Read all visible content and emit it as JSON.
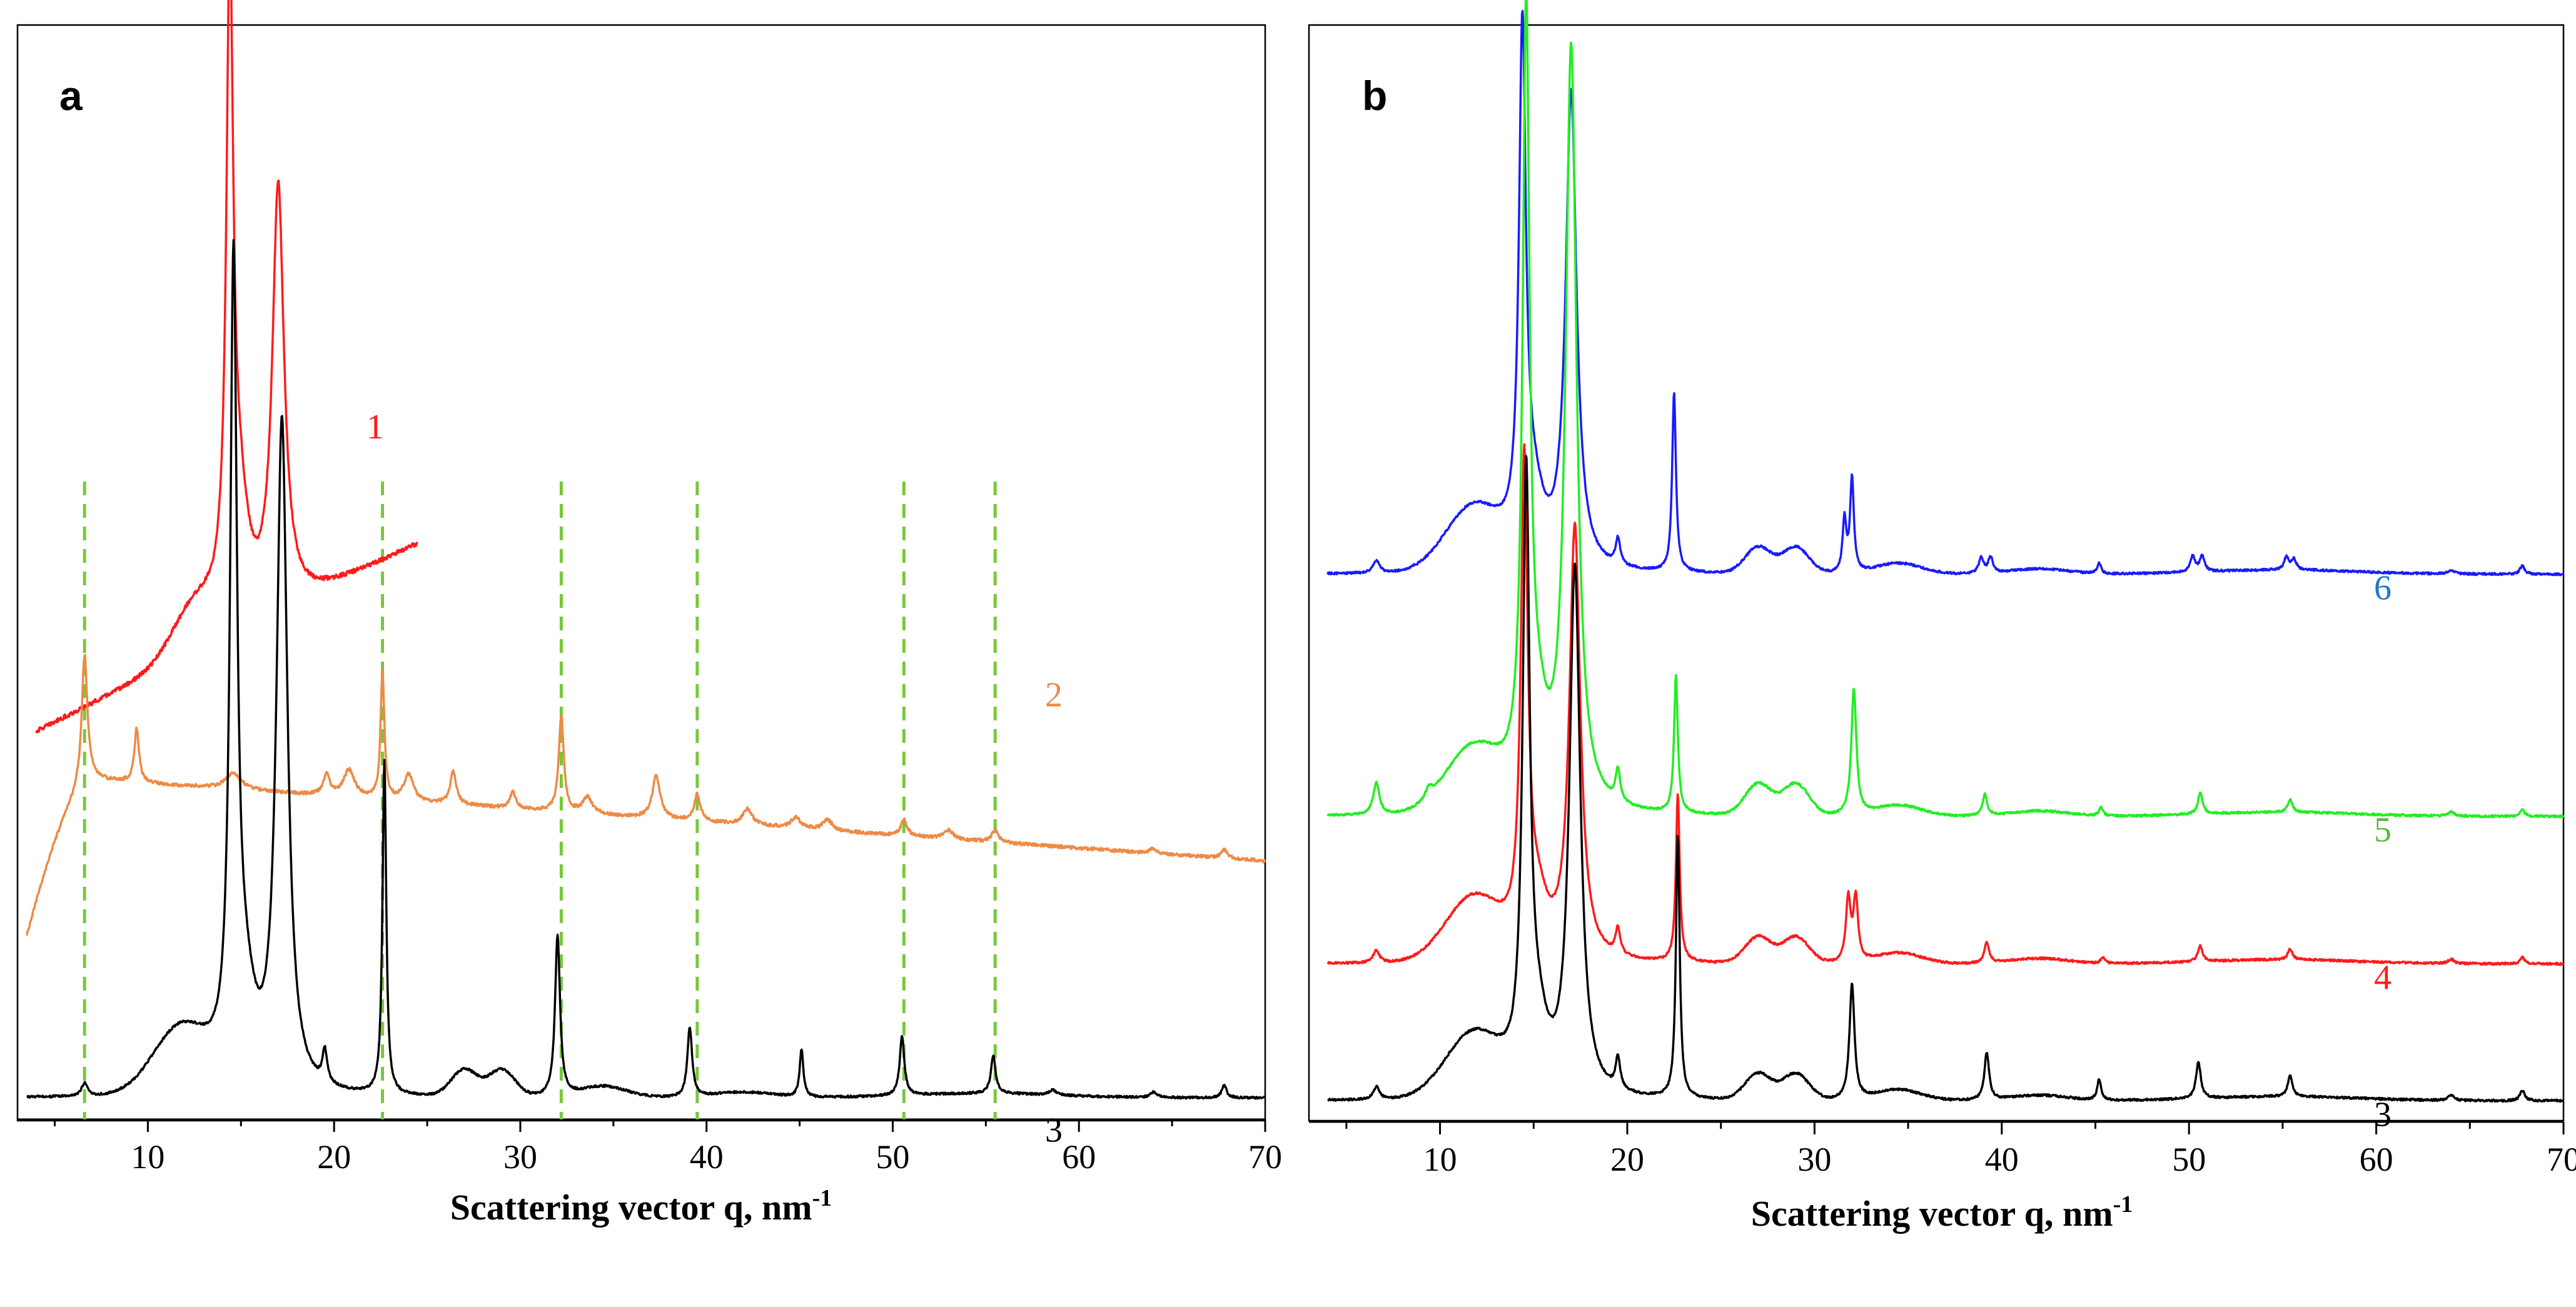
{
  "chart_data": [
    {
      "type": "line",
      "panel": "a",
      "xlabel": "Scattering vector q, nm",
      "xlabel_sup": "-1",
      "xlim": [
        3,
        70
      ],
      "xticks": [
        10,
        20,
        30,
        40,
        50,
        60,
        70
      ],
      "ylabel": "",
      "y_axis_shown": false,
      "grid": false,
      "reference_lines": {
        "style": "dashed",
        "color": "#77c83a",
        "q": [
          6.6,
          22.6,
          32.2,
          39.5,
          50.6,
          55.5
        ]
      },
      "series": [
        {
          "name": "1",
          "label": "1",
          "color": "#ff1a1a",
          "q_range": [
            4.0,
            24.5
          ],
          "baseline": 0.36,
          "slope": 0.0085,
          "broad_peaks": [
            [
              12.5,
              0.04,
              1.2
            ]
          ],
          "peaks": [
            [
              14.4,
              0.58,
              0.22
            ],
            [
              17.0,
              0.39,
              0.38
            ],
            [
              14.9,
              0.1,
              0.6
            ]
          ],
          "noise": 0.004
        },
        {
          "name": "2",
          "label": "2",
          "color": "#ee8a45",
          "q_range": [
            3.5,
            70.0
          ],
          "baseline": 0.32,
          "slope": -0.0012,
          "onset": [
            3.5,
            7.0,
            0.15
          ],
          "peaks": [
            [
              6.6,
              0.12,
              0.18
            ],
            [
              9.4,
              0.05,
              0.15
            ],
            [
              14.6,
              0.015,
              0.5
            ],
            [
              19.6,
              0.02,
              0.2
            ],
            [
              20.8,
              0.025,
              0.35
            ],
            [
              22.6,
              0.12,
              0.12
            ],
            [
              24.0,
              0.025,
              0.3
            ],
            [
              26.4,
              0.03,
              0.2
            ],
            [
              29.6,
              0.015,
              0.2
            ],
            [
              32.2,
              0.09,
              0.16
            ],
            [
              33.6,
              0.015,
              0.3
            ],
            [
              37.3,
              0.04,
              0.25
            ],
            [
              39.5,
              0.025,
              0.2
            ],
            [
              42.2,
              0.015,
              0.3
            ],
            [
              44.8,
              0.01,
              0.3
            ],
            [
              46.5,
              0.01,
              0.3
            ],
            [
              50.6,
              0.015,
              0.2
            ],
            [
              53.0,
              0.008,
              0.3
            ],
            [
              55.5,
              0.012,
              0.2
            ],
            [
              64.0,
              0.005,
              0.2
            ],
            [
              67.8,
              0.008,
              0.2
            ]
          ],
          "noise": 0.003
        },
        {
          "name": "3",
          "label": "3",
          "color": "#000000",
          "q_range": [
            3.5,
            70.0
          ],
          "baseline": 0.02,
          "slope": 0.0,
          "broad_peaks": [
            [
              11.8,
              0.06,
              1.5
            ],
            [
              27.0,
              0.025,
              0.7
            ],
            [
              29.0,
              0.025,
              0.7
            ],
            [
              34.5,
              0.01,
              1.2
            ],
            [
              42.0,
              0.005,
              1.5
            ],
            [
              55.0,
              0.004,
              4.0
            ]
          ],
          "peaks": [
            [
              6.6,
              0.012,
              0.2
            ],
            [
              14.6,
              0.73,
              0.22
            ],
            [
              17.2,
              0.62,
              0.35
            ],
            [
              15.2,
              0.08,
              0.7
            ],
            [
              19.5,
              0.03,
              0.15
            ],
            [
              22.7,
              0.31,
              0.12
            ],
            [
              32.0,
              0.15,
              0.16
            ],
            [
              39.1,
              0.065,
              0.15
            ],
            [
              45.1,
              0.045,
              0.12
            ],
            [
              50.5,
              0.055,
              0.15
            ],
            [
              55.4,
              0.035,
              0.15
            ],
            [
              58.6,
              0.005,
              0.2
            ],
            [
              64.0,
              0.005,
              0.2
            ],
            [
              67.8,
              0.012,
              0.15
            ]
          ],
          "noise": 0.002
        }
      ]
    },
    {
      "type": "line",
      "panel": "b",
      "xlabel": "Scattering vector q, nm",
      "xlabel_sup": "-1",
      "xlim": [
        3,
        70
      ],
      "xticks": [
        10,
        20,
        30,
        40,
        50,
        60,
        70
      ],
      "ylabel": "",
      "y_axis_shown": false,
      "grid": false,
      "series": [
        {
          "name": "6",
          "label": "6",
          "color": "#1a1aff",
          "label_color": "#1a78c8",
          "q_range": [
            4.0,
            70.0
          ],
          "baseline": 0.52,
          "slope": 0.0,
          "broad_peaks": [
            [
              11.8,
              0.06,
              1.5
            ],
            [
              27.0,
              0.025,
              0.7
            ],
            [
              29.0,
              0.025,
              0.7
            ],
            [
              34.5,
              0.01,
              1.2
            ],
            [
              42.0,
              0.005,
              1.5
            ],
            [
              55.0,
              0.004,
              4.0
            ]
          ],
          "peaks": [
            [
              6.6,
              0.012,
              0.2
            ],
            [
              14.4,
              0.48,
              0.22
            ],
            [
              17.0,
              0.45,
              0.35
            ],
            [
              15.0,
              0.06,
              0.7
            ],
            [
              19.5,
              0.025,
              0.15
            ],
            [
              22.5,
              0.17,
              0.12
            ],
            [
              31.6,
              0.05,
              0.12
            ],
            [
              32.0,
              0.09,
              0.12
            ],
            [
              38.9,
              0.015,
              0.15
            ],
            [
              39.4,
              0.015,
              0.15
            ],
            [
              45.2,
              0.01,
              0.12
            ],
            [
              50.2,
              0.015,
              0.15
            ],
            [
              50.7,
              0.015,
              0.15
            ],
            [
              55.2,
              0.012,
              0.15
            ],
            [
              55.6,
              0.01,
              0.15
            ],
            [
              64.0,
              0.004,
              0.2
            ],
            [
              67.8,
              0.008,
              0.15
            ]
          ],
          "noise": 0.002
        },
        {
          "name": "5",
          "label": "5",
          "color": "#22ee22",
          "label_color": "#5cb83a",
          "q_range": [
            4.0,
            70.0
          ],
          "baseline": 0.29,
          "slope": 0.0,
          "broad_peaks": [
            [
              11.8,
              0.06,
              1.5
            ],
            [
              27.0,
              0.03,
              0.7
            ],
            [
              29.0,
              0.03,
              0.7
            ],
            [
              34.5,
              0.01,
              1.2
            ],
            [
              42.0,
              0.005,
              1.5
            ],
            [
              55.0,
              0.004,
              4.0
            ]
          ],
          "peaks": [
            [
              6.6,
              0.03,
              0.2
            ],
            [
              9.4,
              0.01,
              0.2
            ],
            [
              14.6,
              0.72,
              0.22
            ],
            [
              17.0,
              0.72,
              0.35
            ],
            [
              15.2,
              0.07,
              0.7
            ],
            [
              19.5,
              0.03,
              0.15
            ],
            [
              22.6,
              0.13,
              0.12
            ],
            [
              32.1,
              0.12,
              0.16
            ],
            [
              39.1,
              0.02,
              0.15
            ],
            [
              45.3,
              0.008,
              0.12
            ],
            [
              50.6,
              0.02,
              0.15
            ],
            [
              55.4,
              0.012,
              0.15
            ],
            [
              64.0,
              0.004,
              0.2
            ],
            [
              67.8,
              0.006,
              0.15
            ]
          ],
          "noise": 0.002
        },
        {
          "name": "4",
          "label": "4",
          "color": "#ff1a1a",
          "q_range": [
            4.0,
            70.0
          ],
          "baseline": 0.15,
          "slope": 0.0,
          "broad_peaks": [
            [
              11.8,
              0.06,
              1.5
            ],
            [
              27.0,
              0.025,
              0.7
            ],
            [
              29.0,
              0.025,
              0.7
            ],
            [
              34.5,
              0.01,
              1.2
            ],
            [
              42.0,
              0.005,
              1.5
            ],
            [
              55.0,
              0.004,
              4.0
            ]
          ],
          "peaks": [
            [
              6.6,
              0.012,
              0.2
            ],
            [
              14.5,
              0.45,
              0.22
            ],
            [
              17.2,
              0.41,
              0.35
            ],
            [
              15.2,
              0.05,
              0.7
            ],
            [
              19.5,
              0.025,
              0.15
            ],
            [
              22.7,
              0.16,
              0.12
            ],
            [
              31.8,
              0.06,
              0.15
            ],
            [
              32.2,
              0.06,
              0.15
            ],
            [
              39.2,
              0.02,
              0.15
            ],
            [
              45.4,
              0.006,
              0.12
            ],
            [
              50.6,
              0.015,
              0.15
            ],
            [
              55.4,
              0.01,
              0.15
            ],
            [
              64.0,
              0.004,
              0.2
            ],
            [
              67.8,
              0.006,
              0.15
            ]
          ],
          "noise": 0.002
        },
        {
          "name": "3",
          "label": "3",
          "color": "#000000",
          "q_range": [
            4.0,
            70.0
          ],
          "baseline": 0.02,
          "slope": 0.0,
          "broad_peaks": [
            [
              11.8,
              0.06,
              1.5
            ],
            [
              27.0,
              0.025,
              0.7
            ],
            [
              29.0,
              0.025,
              0.7
            ],
            [
              34.5,
              0.01,
              1.2
            ],
            [
              42.0,
              0.005,
              1.5
            ],
            [
              55.0,
              0.004,
              4.0
            ]
          ],
          "peaks": [
            [
              6.6,
              0.012,
              0.2
            ],
            [
              14.6,
              0.56,
              0.22
            ],
            [
              17.2,
              0.5,
              0.35
            ],
            [
              15.2,
              0.06,
              0.7
            ],
            [
              19.5,
              0.03,
              0.15
            ],
            [
              22.7,
              0.25,
              0.12
            ],
            [
              32.0,
              0.11,
              0.16
            ],
            [
              39.2,
              0.045,
              0.15
            ],
            [
              45.2,
              0.02,
              0.12
            ],
            [
              50.5,
              0.035,
              0.15
            ],
            [
              55.4,
              0.02,
              0.15
            ],
            [
              64.0,
              0.005,
              0.2
            ],
            [
              67.8,
              0.01,
              0.15
            ]
          ],
          "noise": 0.002
        }
      ]
    }
  ]
}
